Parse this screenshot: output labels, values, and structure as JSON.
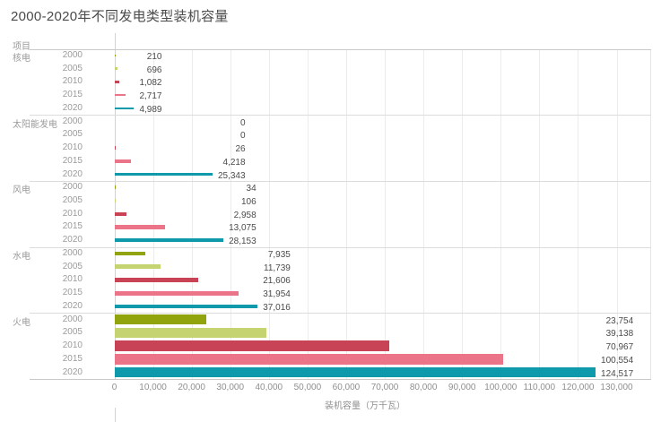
{
  "header": {
    "column_label": "项目"
  },
  "colors": {
    "2000": "#91a40e",
    "2005": "#c5d470",
    "2010": "#c74355",
    "2015": "#eb7488",
    "2020": "#0f9aab"
  },
  "chart_data": {
    "type": "bar",
    "orientation": "horizontal",
    "title": "2000-2020年不同发电类型装机容量",
    "xlabel": "装机容量（万千瓦）",
    "xlim": [
      0,
      130000
    ],
    "x_ticks": [
      "0",
      "10,000",
      "20,000",
      "30,000",
      "40,000",
      "50,000",
      "60,000",
      "70,000",
      "80,000",
      "90,000",
      "100,000",
      "110,000",
      "120,000",
      "130,000"
    ],
    "grid": true,
    "legend": "none",
    "series_dimension": "年份",
    "years": [
      "2000",
      "2005",
      "2010",
      "2015",
      "2020"
    ],
    "categories": [
      "核电",
      "太阳能发电",
      "风电",
      "水电",
      "火电"
    ],
    "groups": [
      {
        "category": "核电",
        "values": [
          210,
          696,
          1082,
          2717,
          4989
        ],
        "labels": [
          "210",
          "696",
          "1,082",
          "2,717",
          "4,989"
        ]
      },
      {
        "category": "太阳能发电",
        "values": [
          0,
          0,
          26,
          4218,
          25343
        ],
        "labels": [
          "0",
          "0",
          "26",
          "4,218",
          "25,343"
        ]
      },
      {
        "category": "风电",
        "values": [
          34,
          106,
          2958,
          13075,
          28153
        ],
        "labels": [
          "34",
          "106",
          "2,958",
          "13,075",
          "28,153"
        ]
      },
      {
        "category": "水电",
        "values": [
          7935,
          11739,
          21606,
          31954,
          37016
        ],
        "labels": [
          "7,935",
          "11,739",
          "21,606",
          "31,954",
          "37,016"
        ]
      },
      {
        "category": "火电",
        "values": [
          23754,
          39138,
          70967,
          100554,
          124517
        ],
        "labels": [
          "23,754",
          "39,138",
          "70,967",
          "100,554",
          "124,517"
        ]
      }
    ]
  }
}
